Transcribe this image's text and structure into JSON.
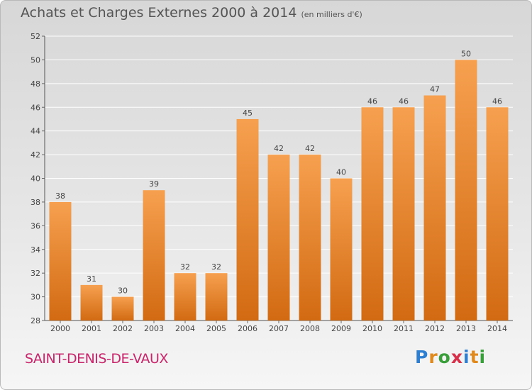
{
  "title": "Achats et Charges Externes 2000 à 2014",
  "unit_note": "(en milliers d'€)",
  "commune": "SAINT-DENIS-DE-VAUX",
  "logo": {
    "text": "Proxiti",
    "letter_colors": [
      "#2f7fd0",
      "#e08a1e",
      "#3a9e3a",
      "#d6304a",
      "#2f7fd0",
      "#e08a1e",
      "#3a9e3a"
    ]
  },
  "colors": {
    "bar_light": "#f6a04f",
    "bar_dark": "#d26a12",
    "grid": "#ffffff",
    "brand": "#c8256b"
  },
  "chart_data": {
    "type": "bar",
    "title": "Achats et Charges Externes 2000 à 2014",
    "subtitle": "(en milliers d'€)",
    "categories": [
      "2000",
      "2001",
      "2002",
      "2003",
      "2004",
      "2005",
      "2006",
      "2007",
      "2008",
      "2009",
      "2010",
      "2011",
      "2012",
      "2013",
      "2014"
    ],
    "values": [
      38,
      31,
      30,
      39,
      32,
      32,
      45,
      42,
      42,
      40,
      46,
      46,
      47,
      50,
      46
    ],
    "ylim": [
      28,
      52
    ],
    "yticks": [
      28,
      30,
      32,
      34,
      36,
      38,
      40,
      42,
      44,
      46,
      48,
      50,
      52
    ],
    "grid": true,
    "xlabel": "",
    "ylabel": ""
  }
}
